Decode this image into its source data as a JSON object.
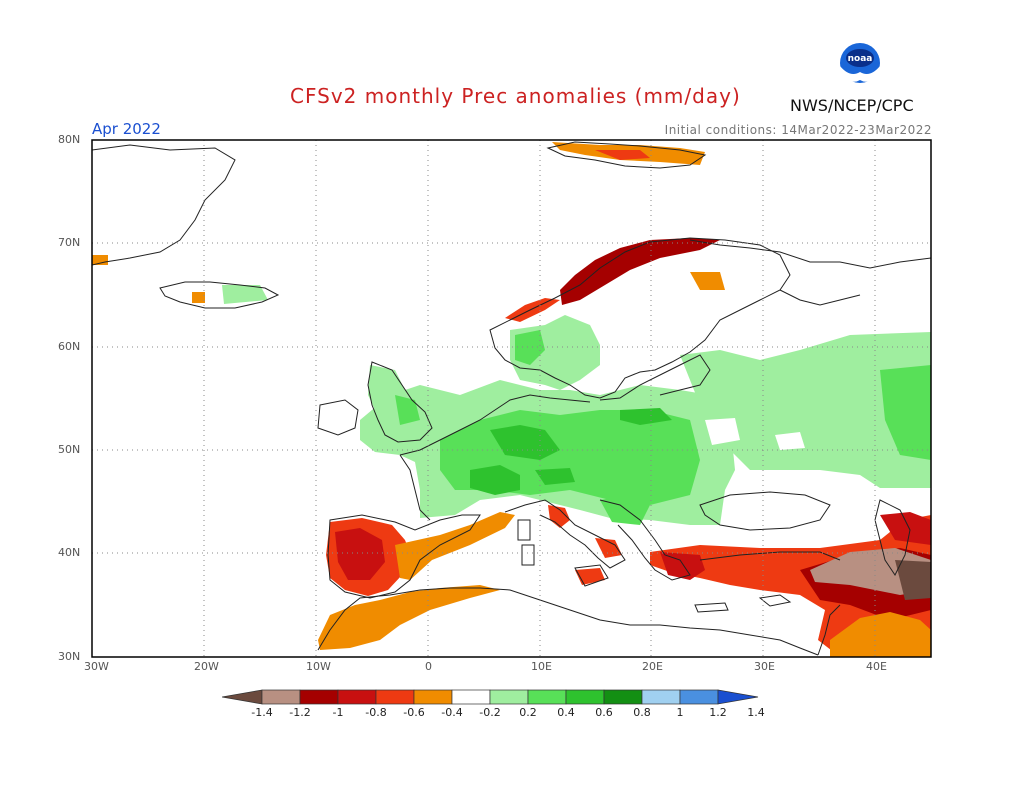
{
  "title": "CFSv2 monthly Prec anomalies (mm/day)",
  "month": "Apr 2022",
  "initial_conditions": "Initial conditions: 14Mar2022-23Mar2022",
  "agency": "NWS/NCEP/CPC",
  "logo_text": "noaa",
  "colors": {
    "title": "#cc2222",
    "month": "#1a4fd0",
    "coast": "#222222",
    "grid": "#888888"
  },
  "axes": {
    "lon_labels": [
      "30W",
      "20W",
      "10W",
      "0",
      "10E",
      "20E",
      "30E",
      "40E"
    ],
    "lat_labels": [
      "80N",
      "70N",
      "60N",
      "50N",
      "40N",
      "30N"
    ],
    "lon_range": [
      -30,
      45
    ],
    "lat_range": [
      30,
      80
    ]
  },
  "legend": {
    "ticks": [
      "-1.4",
      "-1.2",
      "-1",
      "-0.8",
      "-0.6",
      "-0.4",
      "-0.2",
      "0.2",
      "0.4",
      "0.6",
      "0.8",
      "1",
      "1.2",
      "1.4"
    ],
    "colors": [
      "#6b4a3e",
      "#b89082",
      "#a50000",
      "#c81010",
      "#ee3a12",
      "#f08c00",
      "#ffffff",
      "#9fee9f",
      "#58e058",
      "#2ec22e",
      "#138f13",
      "#a0d0f0",
      "#4a90e0",
      "#1a4fd0"
    ]
  },
  "regions": [
    {
      "name": "iberia-dry",
      "color": "#ee3a12",
      "anomaly": -0.6
    },
    {
      "name": "north-africa-dry",
      "color": "#f08c00",
      "anomaly": -0.4
    },
    {
      "name": "norway-coast-dry",
      "color": "#a50000",
      "anomaly": -0.8
    },
    {
      "name": "central-europe-wet",
      "color": "#58e058",
      "anomaly": 0.4
    },
    {
      "name": "russia-wet",
      "color": "#9fee9f",
      "anomaly": 0.2
    },
    {
      "name": "turkey-middle-east-dry",
      "color": "#c81010",
      "anomaly": -0.8
    }
  ]
}
